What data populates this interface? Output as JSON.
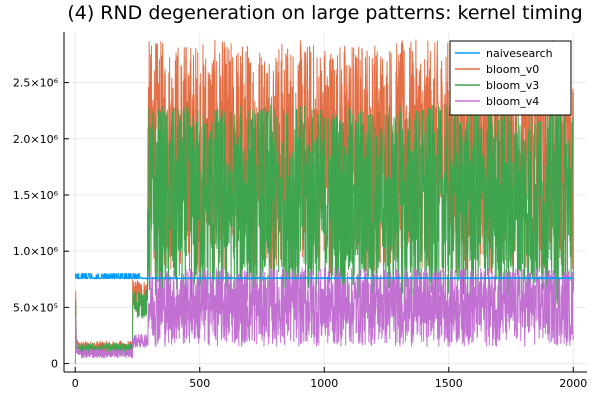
{
  "chart_data": {
    "type": "line",
    "title": "(4) RND degeneration on large patterns: kernel timing",
    "xlabel": "",
    "ylabel": "",
    "xlim": [
      -45,
      2055
    ],
    "ylim": [
      -75000,
      2950000
    ],
    "grid": true,
    "legend_position": "top-right",
    "x_ticks": [
      0,
      500,
      1000,
      1500,
      2000
    ],
    "x_tick_labels": [
      "0",
      "500",
      "1000",
      "1500",
      "2000"
    ],
    "y_ticks": [
      0,
      500000,
      1000000,
      1500000,
      2000000,
      2500000
    ],
    "y_tick_labels": [
      "0",
      "5.0×10⁵",
      "1.0×10⁶",
      "1.5×10⁶",
      "2.0×10⁶",
      "2.5×10⁶"
    ],
    "n_points": 2000,
    "series": [
      {
        "name": "naivesearch",
        "color": "#009AFA",
        "description": "flat near 760000 with spikes up to ~800000 in first ~250 samples",
        "segments": [
          {
            "x_start": 1,
            "x_end": 2000,
            "base": 760000,
            "noise": 6000,
            "spikes": [
              790000,
              800000
            ]
          }
        ]
      },
      {
        "name": "bloom_v0",
        "color": "#E36F47",
        "segments": [
          {
            "x_start": 1,
            "x_end": 10,
            "values_hint": [
              0,
              640000,
              420000,
              260000,
              180000
            ]
          },
          {
            "x_start": 10,
            "x_end": 230,
            "low": 80000,
            "high": 200000
          },
          {
            "x_start": 230,
            "x_end": 290,
            "low": 450000,
            "high": 750000
          },
          {
            "x_start": 290,
            "x_end": 2000,
            "low": 800000,
            "high": 2880000
          }
        ]
      },
      {
        "name": "bloom_v3",
        "color": "#3EA44E",
        "segments": [
          {
            "x_start": 1,
            "x_end": 10,
            "values_hint": [
              0,
              560000,
              360000,
              220000,
              150000
            ]
          },
          {
            "x_start": 10,
            "x_end": 230,
            "low": 70000,
            "high": 180000
          },
          {
            "x_start": 230,
            "x_end": 290,
            "low": 400000,
            "high": 660000
          },
          {
            "x_start": 290,
            "x_end": 2000,
            "low": 500000,
            "high": 2300000
          }
        ]
      },
      {
        "name": "bloom_v4",
        "color": "#C271D2",
        "segments": [
          {
            "x_start": 1,
            "x_end": 10,
            "values_hint": [
              0,
              420000,
              280000,
              160000,
              110000
            ]
          },
          {
            "x_start": 10,
            "x_end": 230,
            "low": 50000,
            "high": 130000
          },
          {
            "x_start": 230,
            "x_end": 290,
            "low": 140000,
            "high": 260000
          },
          {
            "x_start": 290,
            "x_end": 2000,
            "low": 150000,
            "high": 850000
          }
        ]
      }
    ]
  }
}
